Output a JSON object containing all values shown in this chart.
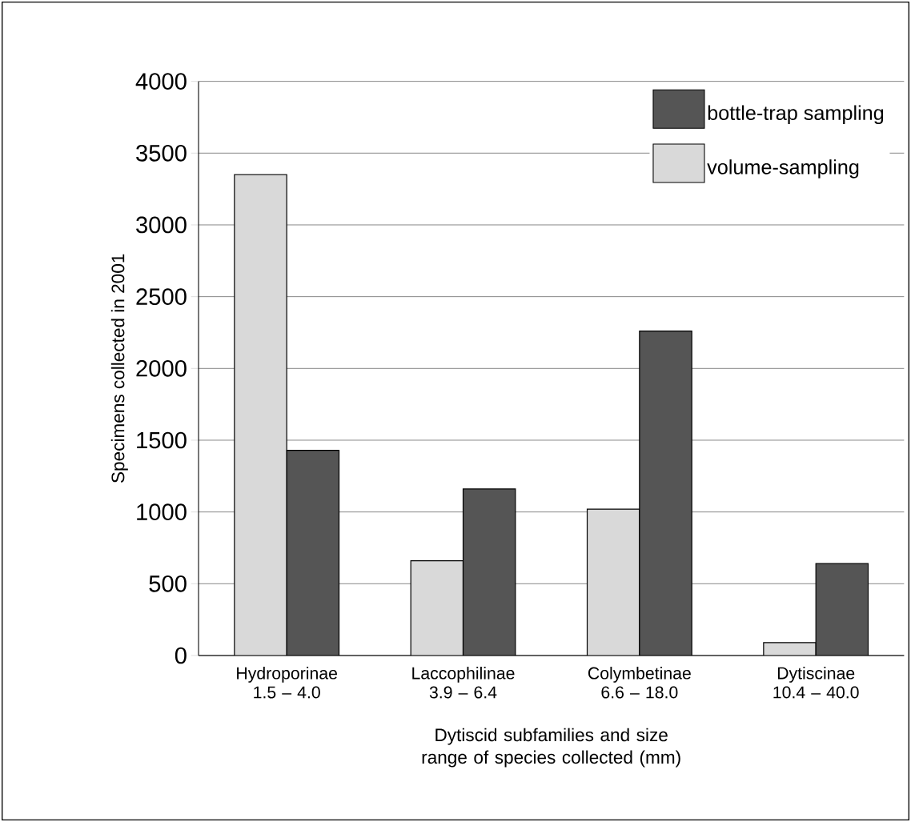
{
  "chart_data": {
    "type": "bar",
    "xlabel": "Dytiscid subfamilies and size range of species collected (mm)",
    "ylabel": "Specimens collected in 2001",
    "categories": [
      "Hydroporinae 1.5 – 4.0",
      "Laccophilinae 3.9 – 6.4",
      "Colymbetinae 6.6 – 18.0",
      "Dytiscinae 10.4 – 40.0"
    ],
    "series": [
      {
        "name": "volume-sampling",
        "color": "#d9d9d9",
        "values": [
          3350,
          660,
          1020,
          90
        ]
      },
      {
        "name": "bottle-trap sampling",
        "color": "#555555",
        "values": [
          1430,
          1160,
          2260,
          640
        ]
      }
    ],
    "ylim": [
      0,
      4000
    ],
    "yticks": [
      0,
      500,
      1000,
      1500,
      2000,
      2500,
      3000,
      3500,
      4000
    ],
    "grid": "y",
    "legend": "top right"
  }
}
